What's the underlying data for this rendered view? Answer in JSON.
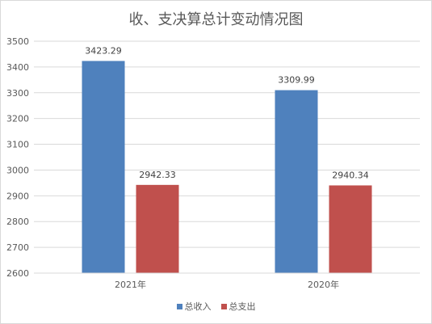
{
  "chart_data": {
    "type": "bar",
    "title": "收、支决算总计变动情况图",
    "categories": [
      "2021年",
      "2020年"
    ],
    "series": [
      {
        "name": "总收入",
        "color": "#4f81bd",
        "values": [
          3423.29,
          3309.99
        ],
        "labels": [
          "3423.29",
          "3309.99"
        ]
      },
      {
        "name": "总支出",
        "color": "#c0504d",
        "values": [
          2942.33,
          2940.34
        ],
        "labels": [
          "2942.33",
          "2940.34"
        ]
      }
    ],
    "ylim": [
      2600,
      3500
    ],
    "yticks": [
      "2600",
      "2700",
      "2800",
      "2900",
      "3000",
      "3100",
      "3200",
      "3300",
      "3400",
      "3500"
    ],
    "xlabel": "",
    "ylabel": "",
    "grid": true,
    "legend": "bottom"
  }
}
